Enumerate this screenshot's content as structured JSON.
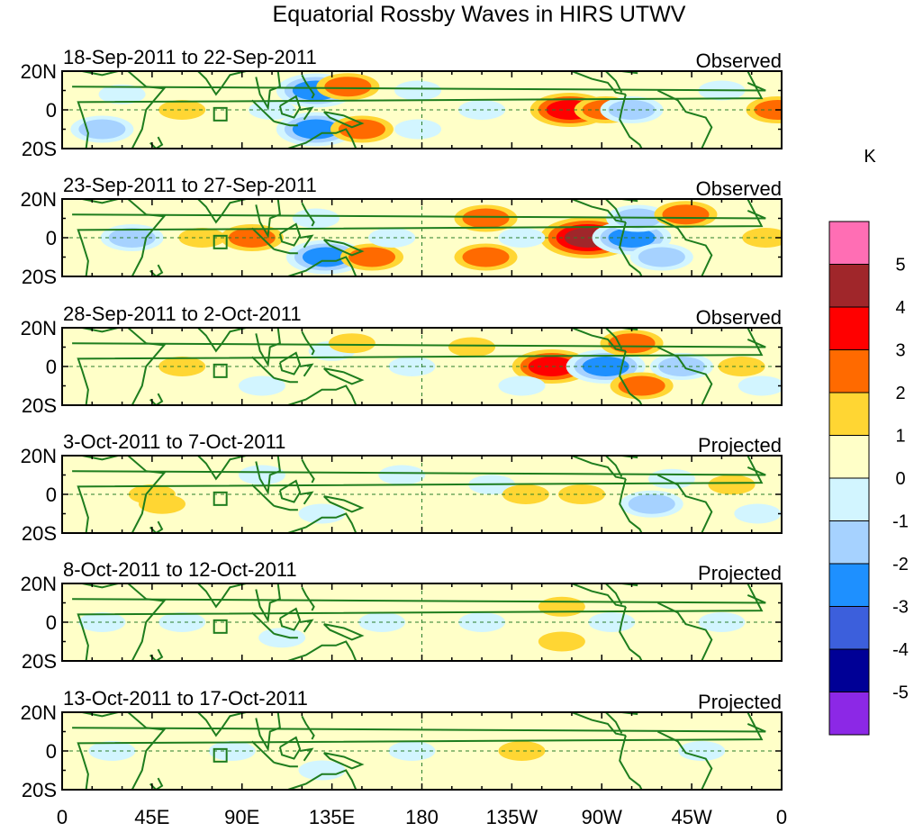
{
  "title": "Equatorial Rossby Waves in HIRS UTWV",
  "colorbar": {
    "unit": "K",
    "labels": [
      "5",
      "4",
      "3",
      "2",
      "1",
      "0",
      "-1",
      "-2",
      "-3",
      "-4",
      "-5"
    ],
    "colors": [
      "#ff6eb4",
      "#a0262a",
      "#ff0000",
      "#ff6a00",
      "#ffd633",
      "#ffffc8",
      "#d2f5ff",
      "#a6d2ff",
      "#1e90ff",
      "#3c5fdc",
      "#000096",
      "#8c28e6"
    ]
  },
  "latitude_labels": [
    "20N",
    "0",
    "20S"
  ],
  "longitude_labels": [
    "0",
    "45E",
    "90E",
    "135E",
    "180",
    "135W",
    "90W",
    "45W",
    "0"
  ],
  "panels": [
    {
      "dates": "18-Sep-2011 to 22-Sep-2011",
      "kind": "Observed"
    },
    {
      "dates": "23-Sep-2011 to 27-Sep-2011",
      "kind": "Observed"
    },
    {
      "dates": "28-Sep-2011 to 2-Oct-2011",
      "kind": "Observed"
    },
    {
      "dates": "3-Oct-2011 to 7-Oct-2011",
      "kind": "Projected"
    },
    {
      "dates": "8-Oct-2011 to 12-Oct-2011",
      "kind": "Projected"
    },
    {
      "dates": "13-Oct-2011 to 17-Oct-2011",
      "kind": "Projected"
    }
  ],
  "anomalies": [
    [
      {
        "lon": 127,
        "lat": 10,
        "v": -3
      },
      {
        "lon": 127,
        "lat": -10,
        "v": -3
      },
      {
        "lon": 150,
        "lat": -10,
        "v": 2
      },
      {
        "lon": 143,
        "lat": 12,
        "v": 2
      },
      {
        "lon": -106,
        "lat": 0,
        "v": 3
      },
      {
        "lon": -88,
        "lat": 0,
        "v": 2
      },
      {
        "lon": -75,
        "lat": 0,
        "v": -2
      },
      {
        "lon": -2,
        "lat": 0,
        "v": 2
      },
      {
        "lon": 20,
        "lat": -10,
        "v": -2
      },
      {
        "lon": 30,
        "lat": 8,
        "v": -1
      },
      {
        "lon": 60,
        "lat": 0,
        "v": 1
      },
      {
        "lon": 105,
        "lat": 0,
        "v": -1
      },
      {
        "lon": 178,
        "lat": 10,
        "v": -1
      },
      {
        "lon": 178,
        "lat": -10,
        "v": -1
      },
      {
        "lon": -150,
        "lat": 0,
        "v": -1
      },
      {
        "lon": -30,
        "lat": 10,
        "v": -1
      }
    ],
    [
      {
        "lon": 127,
        "lat": 10,
        "v": -1
      },
      {
        "lon": 132,
        "lat": -10,
        "v": -3
      },
      {
        "lon": 155,
        "lat": -10,
        "v": 2
      },
      {
        "lon": -148,
        "lat": 10,
        "v": 2
      },
      {
        "lon": -148,
        "lat": -10,
        "v": 2
      },
      {
        "lon": -97,
        "lat": 0,
        "v": 4
      },
      {
        "lon": -75,
        "lat": 0,
        "v": -3
      },
      {
        "lon": -72,
        "lat": 10,
        "v": -2
      },
      {
        "lon": -60,
        "lat": -10,
        "v": -2
      },
      {
        "lon": -48,
        "lat": 12,
        "v": 2
      },
      {
        "lon": -8,
        "lat": 0,
        "v": 1
      },
      {
        "lon": 35,
        "lat": 0,
        "v": -2
      },
      {
        "lon": 70,
        "lat": 0,
        "v": 1
      },
      {
        "lon": 95,
        "lat": 0,
        "v": 2
      },
      {
        "lon": 165,
        "lat": 0,
        "v": -1
      },
      {
        "lon": -130,
        "lat": 0,
        "v": -1
      }
    ],
    [
      {
        "lon": 60,
        "lat": 0,
        "v": 1
      },
      {
        "lon": 100,
        "lat": -10,
        "v": -1
      },
      {
        "lon": 135,
        "lat": 8,
        "v": -1
      },
      {
        "lon": 145,
        "lat": 12,
        "v": 1
      },
      {
        "lon": -155,
        "lat": 10,
        "v": 1
      },
      {
        "lon": -115,
        "lat": 0,
        "v": 3
      },
      {
        "lon": -88,
        "lat": 0,
        "v": -3
      },
      {
        "lon": -75,
        "lat": 12,
        "v": 2
      },
      {
        "lon": -70,
        "lat": -10,
        "v": 2
      },
      {
        "lon": -50,
        "lat": 0,
        "v": -2
      },
      {
        "lon": -20,
        "lat": 0,
        "v": 1
      },
      {
        "lon": -10,
        "lat": -10,
        "v": -1
      },
      {
        "lon": 175,
        "lat": 0,
        "v": -1
      },
      {
        "lon": -130,
        "lat": -10,
        "v": -1
      }
    ],
    [
      {
        "lon": 45,
        "lat": 0,
        "v": 1
      },
      {
        "lon": 50,
        "lat": -5,
        "v": 1
      },
      {
        "lon": 100,
        "lat": 10,
        "v": -1
      },
      {
        "lon": 130,
        "lat": -10,
        "v": -1
      },
      {
        "lon": 170,
        "lat": 10,
        "v": -1
      },
      {
        "lon": -145,
        "lat": 5,
        "v": -1
      },
      {
        "lon": -128,
        "lat": 0,
        "v": 1
      },
      {
        "lon": -100,
        "lat": 0,
        "v": 1
      },
      {
        "lon": -65,
        "lat": -5,
        "v": -2
      },
      {
        "lon": -55,
        "lat": 8,
        "v": -1
      },
      {
        "lon": -25,
        "lat": 5,
        "v": 1
      },
      {
        "lon": -12,
        "lat": -10,
        "v": -1
      }
    ],
    [
      {
        "lon": 20,
        "lat": 0,
        "v": -1
      },
      {
        "lon": 60,
        "lat": 0,
        "v": -1
      },
      {
        "lon": 110,
        "lat": -8,
        "v": -1
      },
      {
        "lon": 160,
        "lat": 0,
        "v": -1
      },
      {
        "lon": -150,
        "lat": 0,
        "v": -1
      },
      {
        "lon": -110,
        "lat": 8,
        "v": 1
      },
      {
        "lon": -110,
        "lat": -10,
        "v": 1
      },
      {
        "lon": -85,
        "lat": 0,
        "v": -1
      },
      {
        "lon": -30,
        "lat": 0,
        "v": -1
      }
    ],
    [
      {
        "lon": 25,
        "lat": 0,
        "v": -1
      },
      {
        "lon": 85,
        "lat": 0,
        "v": -1
      },
      {
        "lon": 130,
        "lat": -10,
        "v": -1
      },
      {
        "lon": 175,
        "lat": 0,
        "v": -1
      },
      {
        "lon": -130,
        "lat": 0,
        "v": 1
      },
      {
        "lon": -40,
        "lat": 0,
        "v": -1
      }
    ]
  ]
}
